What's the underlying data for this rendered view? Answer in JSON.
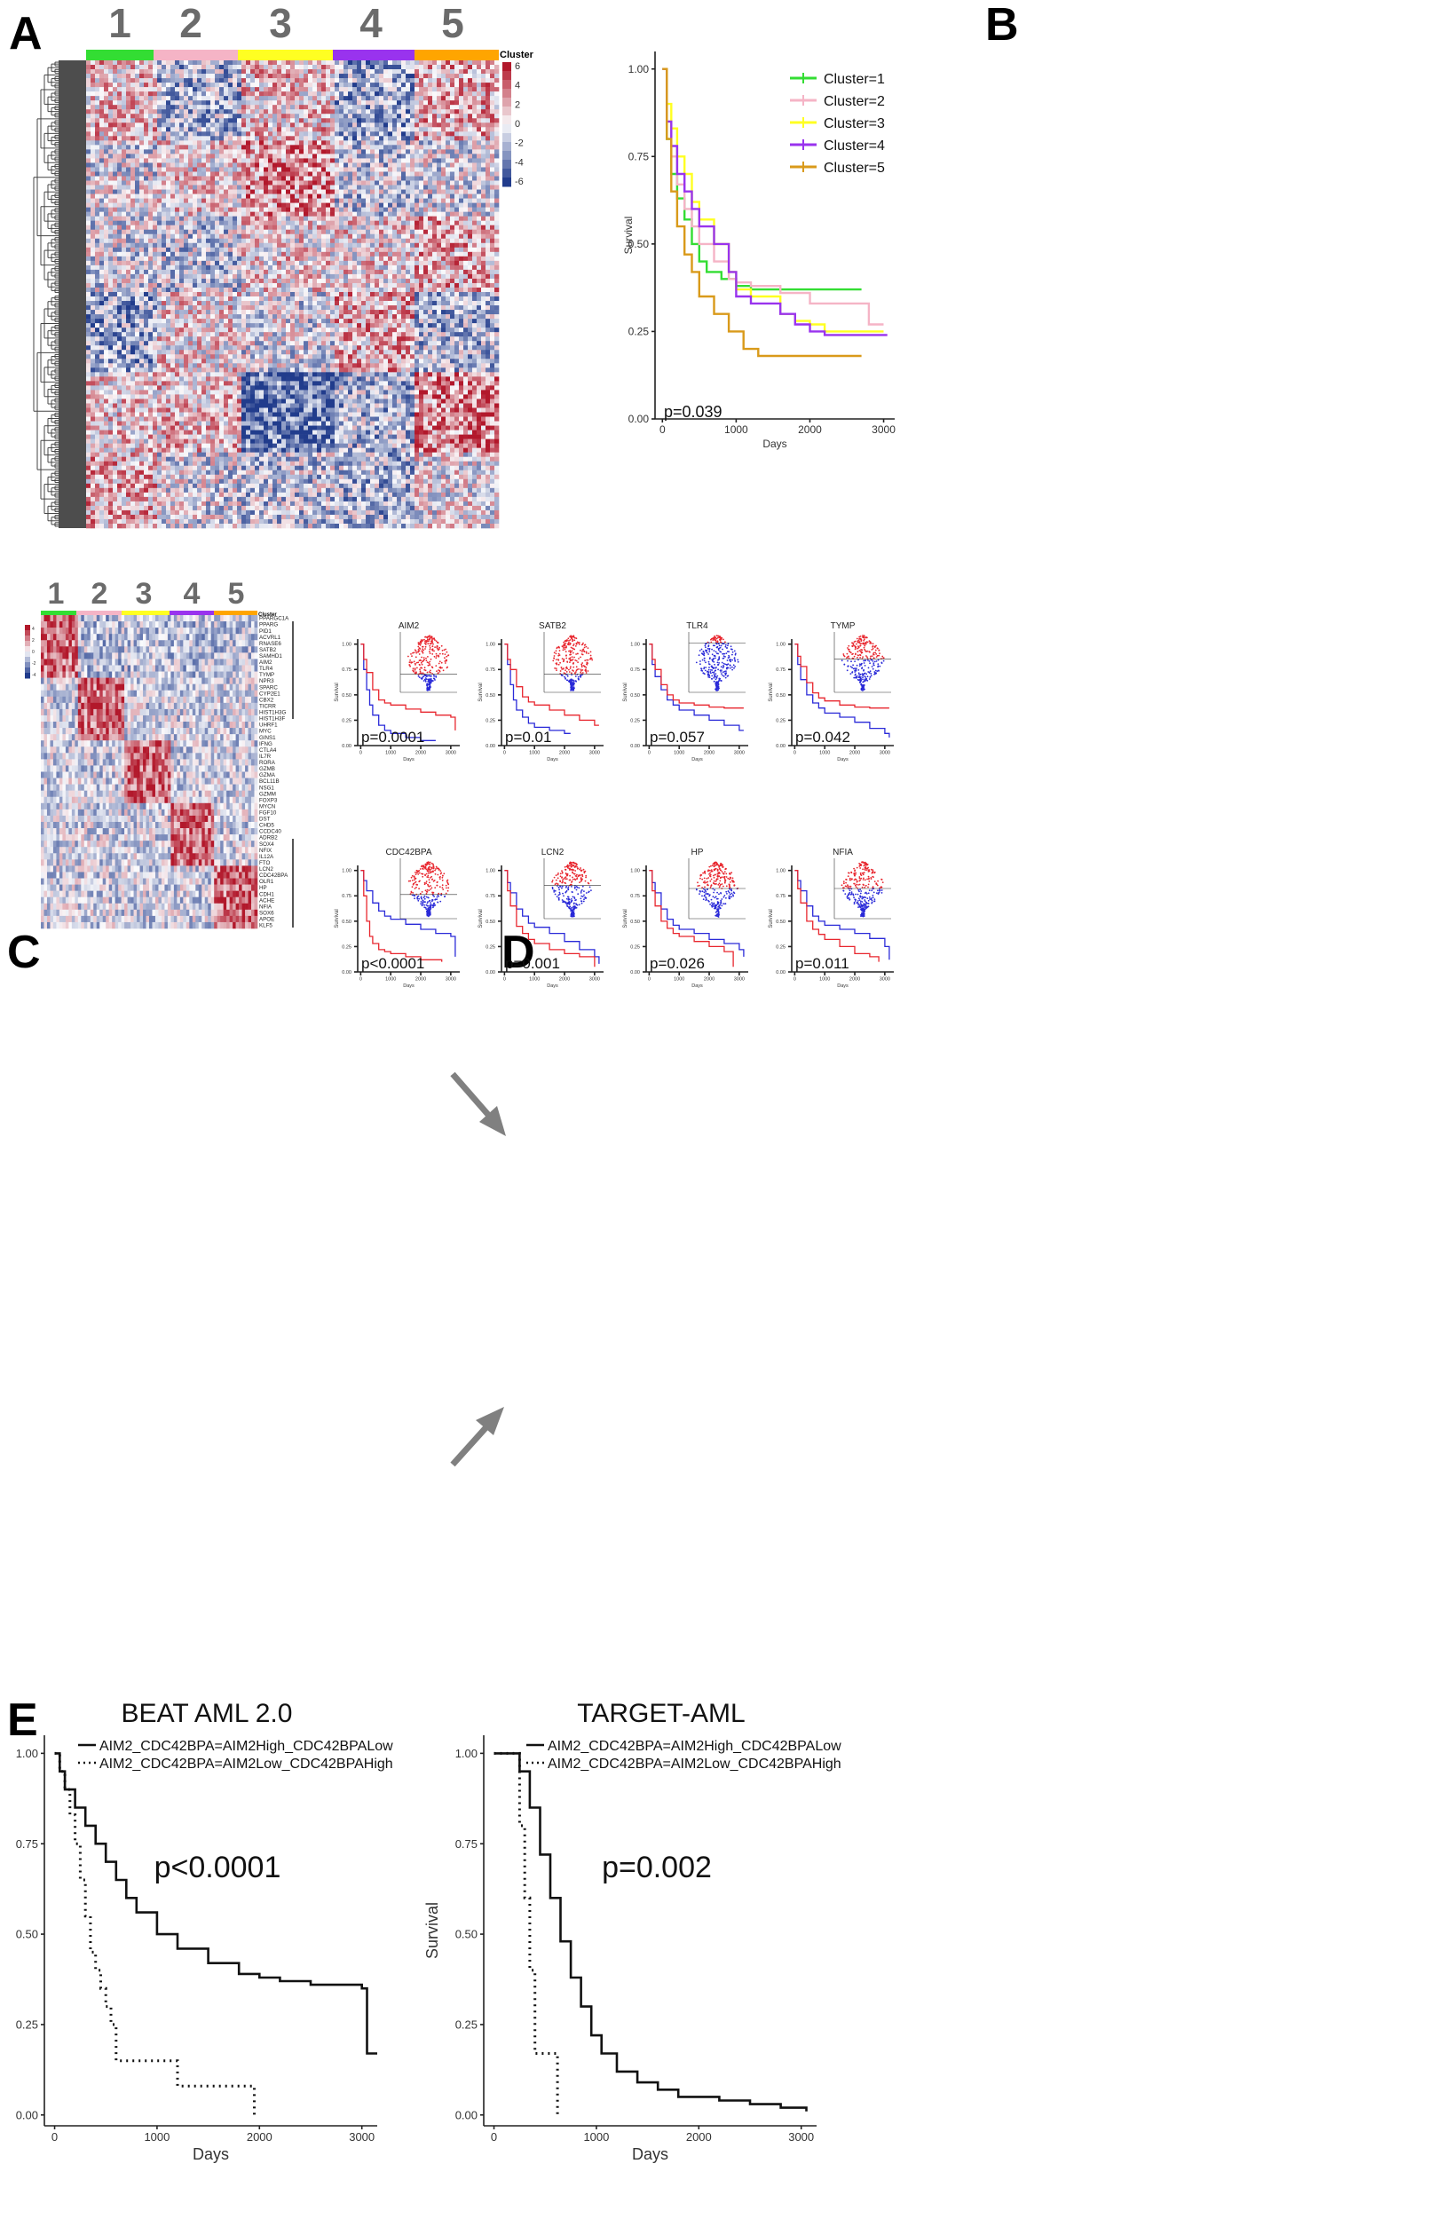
{
  "panels": {
    "a": "A",
    "b": "B",
    "c": "C",
    "d": "D",
    "e": "E"
  },
  "heatmap_a": {
    "cluster_labels": [
      "1",
      "2",
      "3",
      "4",
      "5"
    ],
    "cluster_colors": [
      "#33dd33",
      "#f5b4c6",
      "#ffff22",
      "#9933ee",
      "#ffa500"
    ],
    "legend_title": "Cluster",
    "legend_ticks": [
      "6",
      "4",
      "2",
      "0",
      "-2",
      "-4",
      "-6"
    ]
  },
  "heatmap_c": {
    "cluster_labels": [
      "1",
      "2",
      "3",
      "4",
      "5"
    ],
    "legend_title": "Cluster",
    "legend_ticks": [
      "4",
      "2",
      "0",
      "-2",
      "-4"
    ],
    "genes": [
      "PPARGC1A",
      "PPARG",
      "PID1",
      "ACVRL1",
      "RNASE6",
      "SATB2",
      "SAMHD1",
      "AIM2",
      "TLR4",
      "TYMP",
      "NPR3",
      "SPARC",
      "CYP2E1",
      "CBX2",
      "TICRR",
      "HIST1H3G",
      "HIST1H3F",
      "UHRF1",
      "MYC",
      "GINS1",
      "IFNG",
      "CTLA4",
      "IL7R",
      "RORA",
      "GZMB",
      "GZMA",
      "BCL11B",
      "NSG1",
      "GZMM",
      "FOXP3",
      "MYCN",
      "FGF10",
      "DST",
      "CHD5",
      "CCDC40",
      "ADRB2",
      "SOX4",
      "NFIX",
      "IL12A",
      "FTO",
      "LCN2",
      "CDC42BPA",
      "OLR1",
      "HP",
      "CDH1",
      "ACHE",
      "NFIA",
      "SOX6",
      "APOE",
      "KLF5"
    ]
  },
  "colors": {
    "red": "#b2182b",
    "blue": "#2b3a9a",
    "kmRed": "#e8262e",
    "kmBlue": "#2a2ad8"
  },
  "chart_data": [
    {
      "type": "line",
      "panel": "B",
      "xlabel": "Days",
      "ylabel": "Survival",
      "xticks": [
        "0",
        "1000",
        "2000",
        "3000"
      ],
      "yticks": [
        "0.00",
        "0.25",
        "0.50",
        "0.75",
        "1.00"
      ],
      "xlim": [
        -100,
        3150
      ],
      "ylim": [
        0,
        1.05
      ],
      "annotation": "p=0.039",
      "series": [
        {
          "name": "Cluster=1",
          "color": "#33dd33",
          "x": [
            0,
            60,
            120,
            200,
            300,
            400,
            500,
            600,
            800,
            1000,
            1200,
            2700
          ],
          "y": [
            1.0,
            0.8,
            0.7,
            0.63,
            0.57,
            0.5,
            0.45,
            0.42,
            0.4,
            0.38,
            0.37,
            0.37
          ]
        },
        {
          "name": "Cluster=2",
          "color": "#f5b4c6",
          "x": [
            0,
            60,
            120,
            200,
            300,
            400,
            500,
            700,
            900,
            1000,
            1200,
            1600,
            2000,
            2600,
            2800,
            3000
          ],
          "y": [
            1.0,
            0.85,
            0.75,
            0.67,
            0.6,
            0.55,
            0.5,
            0.45,
            0.4,
            0.39,
            0.38,
            0.36,
            0.33,
            0.33,
            0.27,
            0.27
          ]
        },
        {
          "name": "Cluster=3",
          "color": "#ffff22",
          "x": [
            0,
            60,
            120,
            200,
            300,
            400,
            500,
            700,
            900,
            1000,
            1200,
            1600,
            1800,
            2000,
            2200,
            3000
          ],
          "y": [
            1.0,
            0.9,
            0.83,
            0.75,
            0.7,
            0.62,
            0.57,
            0.5,
            0.42,
            0.37,
            0.35,
            0.3,
            0.28,
            0.27,
            0.25,
            0.25
          ]
        },
        {
          "name": "Cluster=4",
          "color": "#9933ee",
          "x": [
            0,
            60,
            120,
            200,
            300,
            400,
            500,
            700,
            900,
            1000,
            1200,
            1600,
            1800,
            2000,
            2200,
            3050
          ],
          "y": [
            1.0,
            0.85,
            0.78,
            0.7,
            0.65,
            0.6,
            0.55,
            0.5,
            0.42,
            0.35,
            0.33,
            0.3,
            0.27,
            0.25,
            0.24,
            0.24
          ]
        },
        {
          "name": "Cluster=5",
          "color": "#d99a1a",
          "x": [
            0,
            60,
            120,
            200,
            300,
            400,
            500,
            700,
            900,
            1100,
            1300,
            1600,
            2000,
            2700
          ],
          "y": [
            1.0,
            0.8,
            0.65,
            0.55,
            0.47,
            0.42,
            0.35,
            0.3,
            0.25,
            0.2,
            0.18,
            0.18,
            0.18,
            0.18
          ]
        }
      ]
    },
    {
      "type": "line",
      "panel": "D",
      "xlabel": "Days",
      "ylabel": "Survival",
      "xticks": [
        "0",
        "1000",
        "2000",
        "3000"
      ],
      "yticks": [
        "0.00",
        "0.25",
        "0.50",
        "0.75",
        "1.00"
      ],
      "plots": [
        {
          "title": "AIM2",
          "annotation": "p=0.0001",
          "red": {
            "x": [
              0,
              100,
              200,
              400,
              600,
              800,
              1000,
              1500,
              2000,
              2500,
              3000,
              3150
            ],
            "y": [
              1.0,
              0.85,
              0.72,
              0.55,
              0.45,
              0.42,
              0.4,
              0.36,
              0.33,
              0.3,
              0.28,
              0.15
            ]
          },
          "blue": {
            "x": [
              0,
              100,
              200,
              300,
              400,
              600,
              800,
              1000,
              1500,
              2000,
              2500
            ],
            "y": [
              1.0,
              0.75,
              0.55,
              0.4,
              0.3,
              0.2,
              0.15,
              0.12,
              0.08,
              0.05,
              0.05
            ]
          }
        },
        {
          "title": "SATB2",
          "annotation": "p=0.01",
          "red": {
            "x": [
              0,
              100,
              200,
              400,
              600,
              800,
              1000,
              1500,
              2000,
              2500,
              3000,
              3150
            ],
            "y": [
              1.0,
              0.85,
              0.75,
              0.58,
              0.48,
              0.43,
              0.4,
              0.35,
              0.3,
              0.25,
              0.2,
              0.2
            ]
          },
          "blue": {
            "x": [
              0,
              100,
              200,
              300,
              400,
              600,
              800,
              1000,
              1500,
              2000,
              2200
            ],
            "y": [
              1.0,
              0.8,
              0.6,
              0.45,
              0.35,
              0.28,
              0.22,
              0.18,
              0.15,
              0.12,
              0.12
            ]
          }
        },
        {
          "title": "TLR4",
          "annotation": "p=0.057",
          "red": {
            "x": [
              0,
              100,
              200,
              400,
              600,
              800,
              1000,
              1500,
              2000,
              2500,
              3150
            ],
            "y": [
              1.0,
              0.85,
              0.75,
              0.6,
              0.5,
              0.45,
              0.42,
              0.4,
              0.38,
              0.37,
              0.37
            ]
          },
          "blue": {
            "x": [
              0,
              100,
              200,
              400,
              600,
              800,
              1000,
              1500,
              2000,
              2500,
              3000,
              3150
            ],
            "y": [
              1.0,
              0.8,
              0.68,
              0.55,
              0.45,
              0.4,
              0.35,
              0.3,
              0.25,
              0.2,
              0.15,
              0.15
            ]
          }
        },
        {
          "title": "TYMP",
          "annotation": "p=0.042",
          "red": {
            "x": [
              0,
              100,
              200,
              400,
              600,
              800,
              1000,
              1500,
              2000,
              2500,
              3150
            ],
            "y": [
              1.0,
              0.88,
              0.78,
              0.62,
              0.52,
              0.47,
              0.44,
              0.4,
              0.38,
              0.37,
              0.37
            ]
          },
          "blue": {
            "x": [
              0,
              100,
              200,
              400,
              600,
              800,
              1000,
              1500,
              2000,
              2500,
              3000,
              3150
            ],
            "y": [
              1.0,
              0.8,
              0.65,
              0.5,
              0.42,
              0.37,
              0.32,
              0.28,
              0.23,
              0.17,
              0.12,
              0.08
            ]
          }
        },
        {
          "title": "CDC42BPA",
          "annotation": "p<0.0001",
          "red": {
            "x": [
              0,
              100,
              200,
              300,
              400,
              600,
              800,
              1000,
              1500,
              2000,
              2500,
              2700
            ],
            "y": [
              1.0,
              0.75,
              0.5,
              0.35,
              0.28,
              0.22,
              0.2,
              0.18,
              0.15,
              0.12,
              0.12,
              0.1
            ]
          },
          "blue": {
            "x": [
              0,
              100,
              200,
              400,
              600,
              800,
              1000,
              1500,
              2000,
              2500,
              3000,
              3150
            ],
            "y": [
              1.0,
              0.9,
              0.8,
              0.68,
              0.6,
              0.55,
              0.52,
              0.47,
              0.42,
              0.38,
              0.35,
              0.15
            ]
          }
        },
        {
          "title": "LCN2",
          "annotation": "p=0.001",
          "red": {
            "x": [
              0,
              100,
              200,
              400,
              600,
              800,
              1000,
              1500,
              2000,
              2500,
              3000
            ],
            "y": [
              1.0,
              0.8,
              0.65,
              0.45,
              0.38,
              0.32,
              0.28,
              0.22,
              0.18,
              0.15,
              0.05
            ]
          },
          "blue": {
            "x": [
              0,
              100,
              200,
              400,
              600,
              800,
              1000,
              1500,
              2000,
              2500,
              3000,
              3150
            ],
            "y": [
              1.0,
              0.88,
              0.78,
              0.62,
              0.55,
              0.48,
              0.44,
              0.38,
              0.3,
              0.22,
              0.15,
              0.08
            ]
          }
        },
        {
          "title": "HP",
          "annotation": "p=0.026",
          "red": {
            "x": [
              0,
              100,
              200,
              400,
              600,
              800,
              1000,
              1500,
              2000,
              2500,
              2800
            ],
            "y": [
              1.0,
              0.8,
              0.65,
              0.5,
              0.43,
              0.38,
              0.35,
              0.3,
              0.25,
              0.2,
              0.05
            ]
          },
          "blue": {
            "x": [
              0,
              100,
              200,
              400,
              600,
              800,
              1000,
              1500,
              2000,
              2500,
              3000,
              3150
            ],
            "y": [
              1.0,
              0.88,
              0.78,
              0.62,
              0.52,
              0.46,
              0.42,
              0.38,
              0.32,
              0.28,
              0.22,
              0.15
            ]
          }
        },
        {
          "title": "NFIA",
          "annotation": "p=0.011",
          "red": {
            "x": [
              0,
              100,
              200,
              400,
              600,
              800,
              1000,
              1500,
              2000,
              2500,
              2800
            ],
            "y": [
              1.0,
              0.82,
              0.68,
              0.5,
              0.42,
              0.37,
              0.32,
              0.25,
              0.18,
              0.15,
              0.1
            ]
          },
          "blue": {
            "x": [
              0,
              100,
              200,
              400,
              600,
              800,
              1000,
              1500,
              2000,
              2500,
              3000,
              3150
            ],
            "y": [
              1.0,
              0.9,
              0.8,
              0.65,
              0.55,
              0.5,
              0.46,
              0.42,
              0.38,
              0.33,
              0.25,
              0.12
            ]
          }
        }
      ]
    },
    {
      "type": "line",
      "panel": "E",
      "title": "BEAT AML 2.0",
      "xlabel": "Days",
      "ylabel": "Survival",
      "xticks": [
        "0",
        "1000",
        "2000",
        "3000"
      ],
      "yticks": [
        "0.00",
        "0.25",
        "0.50",
        "0.75",
        "1.00"
      ],
      "xlim": [
        -100,
        3150
      ],
      "ylim": [
        -0.03,
        1.05
      ],
      "annotation": "p<0.0001",
      "series": [
        {
          "name": "AIM2_CDC42BPA=AIM2High_CDC42BPALow",
          "style": "solid",
          "x": [
            0,
            50,
            100,
            200,
            300,
            400,
            500,
            600,
            700,
            800,
            1000,
            1200,
            1500,
            1800,
            2000,
            2200,
            2500,
            3000,
            3050,
            3150
          ],
          "y": [
            1.0,
            0.95,
            0.9,
            0.85,
            0.8,
            0.75,
            0.7,
            0.65,
            0.6,
            0.56,
            0.5,
            0.46,
            0.42,
            0.39,
            0.38,
            0.37,
            0.36,
            0.35,
            0.17,
            0.17
          ]
        },
        {
          "name": "AIM2_CDC42BPA=AIM2Low_CDC42BPAHigh",
          "style": "dotted",
          "x": [
            0,
            50,
            100,
            150,
            200,
            250,
            300,
            350,
            400,
            450,
            500,
            550,
            600,
            900,
            1200,
            1500,
            1900,
            1950
          ],
          "y": [
            1.0,
            0.95,
            0.9,
            0.83,
            0.75,
            0.65,
            0.55,
            0.45,
            0.4,
            0.35,
            0.3,
            0.25,
            0.15,
            0.15,
            0.08,
            0.08,
            0.08,
            0.0
          ]
        }
      ]
    },
    {
      "type": "line",
      "panel": "E",
      "title": "TARGET-AML",
      "xlabel": "Days",
      "ylabel": "Survival",
      "xticks": [
        "0",
        "1000",
        "2000",
        "3000"
      ],
      "yticks": [
        "0.00",
        "0.25",
        "0.50",
        "0.75",
        "1.00"
      ],
      "xlim": [
        -100,
        3150
      ],
      "ylim": [
        -0.03,
        1.05
      ],
      "annotation": "p=0.002",
      "series": [
        {
          "name": "AIM2_CDC42BPA=AIM2High_CDC42BPALow",
          "style": "solid",
          "x": [
            0,
            150,
            250,
            350,
            450,
            550,
            650,
            750,
            850,
            950,
            1050,
            1200,
            1400,
            1600,
            1800,
            2000,
            2200,
            2500,
            2800,
            3050
          ],
          "y": [
            1.0,
            1.0,
            0.95,
            0.85,
            0.72,
            0.6,
            0.48,
            0.38,
            0.3,
            0.22,
            0.17,
            0.12,
            0.09,
            0.07,
            0.05,
            0.05,
            0.04,
            0.03,
            0.02,
            0.01
          ]
        },
        {
          "name": "AIM2_CDC42BPA=AIM2Low_CDC42BPAHigh",
          "style": "dotted",
          "x": [
            0,
            200,
            250,
            300,
            350,
            400,
            600,
            620
          ],
          "y": [
            1.0,
            1.0,
            0.8,
            0.6,
            0.4,
            0.17,
            0.17,
            0.0
          ]
        }
      ]
    }
  ]
}
